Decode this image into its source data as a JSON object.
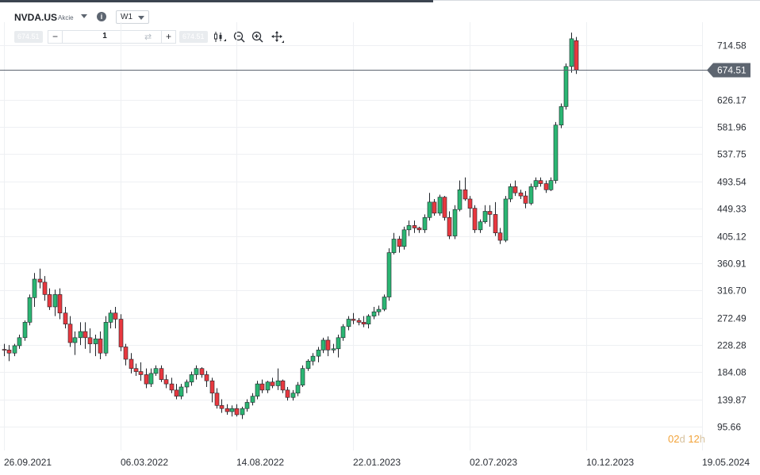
{
  "header": {
    "symbol": "NVDA.US",
    "asset_type": "Akcie",
    "timeframe": "W1"
  },
  "toolbar": {
    "sell_price": "674.51",
    "quantity": "1",
    "minus_label": "−",
    "plus_label": "+",
    "swap_glyph": "⇄",
    "buy_price": "674.51",
    "tools": [
      "candlestick-type-icon",
      "zoom-out-icon",
      "zoom-in-icon",
      "crosshair-move-icon"
    ]
  },
  "countdown": {
    "days": "02",
    "days_unit": "d",
    "hours": "12",
    "hours_unit": "h"
  },
  "colors": {
    "up": "#2bb673",
    "down": "#e8383f",
    "grid": "#eef0f3",
    "current_price_line": "#5d6570",
    "price_tag_bg": "#5d6570",
    "countdown": "#f2a33a"
  },
  "chart_data": {
    "type": "candlestick",
    "symbol": "NVDA.US",
    "timeframe": "W1",
    "current_price": 674.51,
    "grid": true,
    "ylim": [
      95.66,
      740
    ],
    "y_ticks": [
      714.58,
      626.17,
      581.96,
      537.75,
      493.54,
      449.33,
      405.12,
      360.91,
      316.7,
      272.49,
      228.28,
      184.08,
      139.87,
      95.66
    ],
    "y_tick_labels": [
      "714.58",
      "626.17",
      "581.96",
      "537.75",
      "493.54",
      "449.33",
      "405.12",
      "360.91",
      "316.70",
      "272.49",
      "228.28",
      "184.08",
      "139.87",
      "95.66"
    ],
    "x_tick_labels": [
      "26.09.2021",
      "06.03.2022",
      "14.08.2022",
      "22.01.2023",
      "02.07.2023",
      "10.12.2023",
      "19.05.2024"
    ],
    "x_tick_index": [
      0,
      23,
      46,
      69,
      92,
      115,
      138
    ],
    "candles": [
      [
        221,
        230,
        210,
        220
      ],
      [
        220,
        228,
        202,
        215
      ],
      [
        215,
        230,
        210,
        227
      ],
      [
        227,
        245,
        222,
        240
      ],
      [
        240,
        268,
        235,
        265
      ],
      [
        265,
        310,
        260,
        305
      ],
      [
        305,
        345,
        290,
        335
      ],
      [
        335,
        352,
        320,
        330
      ],
      [
        330,
        340,
        300,
        310
      ],
      [
        310,
        320,
        285,
        290
      ],
      [
        290,
        318,
        275,
        310
      ],
      [
        310,
        320,
        270,
        280
      ],
      [
        280,
        290,
        255,
        262
      ],
      [
        262,
        275,
        225,
        232
      ],
      [
        232,
        250,
        212,
        240
      ],
      [
        240,
        265,
        228,
        250
      ],
      [
        250,
        265,
        222,
        240
      ],
      [
        240,
        255,
        215,
        230
      ],
      [
        230,
        245,
        210,
        238
      ],
      [
        238,
        250,
        205,
        215
      ],
      [
        215,
        275,
        210,
        265
      ],
      [
        265,
        285,
        255,
        280
      ],
      [
        280,
        290,
        255,
        270
      ],
      [
        270,
        278,
        218,
        225
      ],
      [
        225,
        230,
        195,
        205
      ],
      [
        205,
        215,
        182,
        190
      ],
      [
        190,
        198,
        178,
        185
      ],
      [
        185,
        200,
        170,
        180
      ],
      [
        180,
        190,
        158,
        165
      ],
      [
        165,
        190,
        160,
        182
      ],
      [
        182,
        195,
        178,
        190
      ],
      [
        190,
        195,
        168,
        172
      ],
      [
        172,
        180,
        158,
        165
      ],
      [
        165,
        175,
        150,
        155
      ],
      [
        155,
        165,
        140,
        145
      ],
      [
        145,
        165,
        140,
        160
      ],
      [
        160,
        172,
        150,
        168
      ],
      [
        168,
        185,
        162,
        180
      ],
      [
        180,
        195,
        172,
        190
      ],
      [
        190,
        192,
        175,
        180
      ],
      [
        180,
        186,
        160,
        170
      ],
      [
        170,
        175,
        135,
        150
      ],
      [
        150,
        158,
        125,
        130
      ],
      [
        130,
        140,
        118,
        125
      ],
      [
        125,
        132,
        115,
        120
      ],
      [
        120,
        130,
        112,
        125
      ],
      [
        125,
        132,
        112,
        115
      ],
      [
        115,
        128,
        108,
        125
      ],
      [
        125,
        140,
        120,
        135
      ],
      [
        135,
        150,
        130,
        145
      ],
      [
        145,
        170,
        140,
        165
      ],
      [
        165,
        172,
        150,
        155
      ],
      [
        155,
        170,
        150,
        168
      ],
      [
        168,
        175,
        158,
        162
      ],
      [
        162,
        190,
        155,
        170
      ],
      [
        170,
        172,
        150,
        155
      ],
      [
        155,
        160,
        138,
        143
      ],
      [
        143,
        155,
        138,
        150
      ],
      [
        150,
        168,
        145,
        163
      ],
      [
        163,
        195,
        160,
        190
      ],
      [
        190,
        205,
        186,
        202
      ],
      [
        202,
        215,
        195,
        210
      ],
      [
        210,
        225,
        200,
        220
      ],
      [
        220,
        240,
        215,
        236
      ],
      [
        236,
        242,
        210,
        220
      ],
      [
        220,
        230,
        215,
        222
      ],
      [
        222,
        245,
        208,
        240
      ],
      [
        240,
        262,
        235,
        258
      ],
      [
        258,
        275,
        252,
        270
      ],
      [
        270,
        280,
        262,
        268
      ],
      [
        268,
        272,
        260,
        265
      ],
      [
        265,
        275,
        257,
        262
      ],
      [
        262,
        278,
        255,
        275
      ],
      [
        275,
        290,
        270,
        282
      ],
      [
        282,
        292,
        276,
        286
      ],
      [
        286,
        310,
        283,
        306
      ],
      [
        306,
        385,
        300,
        378
      ],
      [
        378,
        410,
        375,
        400
      ],
      [
        400,
        405,
        378,
        388
      ],
      [
        388,
        420,
        383,
        415
      ],
      [
        415,
        430,
        405,
        422
      ],
      [
        422,
        430,
        410,
        418
      ],
      [
        418,
        420,
        410,
        415
      ],
      [
        415,
        440,
        410,
        435
      ],
      [
        435,
        475,
        430,
        460
      ],
      [
        460,
        465,
        438,
        442
      ],
      [
        442,
        472,
        438,
        468
      ],
      [
        468,
        470,
        430,
        435
      ],
      [
        435,
        445,
        400,
        405
      ],
      [
        405,
        455,
        400,
        448
      ],
      [
        448,
        495,
        445,
        480
      ],
      [
        480,
        500,
        462,
        465
      ],
      [
        465,
        470,
        435,
        450
      ],
      [
        450,
        455,
        410,
        415
      ],
      [
        415,
        432,
        410,
        428
      ],
      [
        428,
        455,
        425,
        445
      ],
      [
        445,
        455,
        420,
        440
      ],
      [
        440,
        460,
        405,
        410
      ],
      [
        410,
        418,
        392,
        398
      ],
      [
        398,
        470,
        395,
        465
      ],
      [
        465,
        490,
        460,
        485
      ],
      [
        485,
        495,
        470,
        475
      ],
      [
        475,
        480,
        465,
        470
      ],
      [
        470,
        478,
        450,
        458
      ],
      [
        458,
        490,
        455,
        485
      ],
      [
        485,
        500,
        480,
        495
      ],
      [
        495,
        500,
        485,
        490
      ],
      [
        490,
        495,
        475,
        480
      ],
      [
        480,
        500,
        478,
        495
      ],
      [
        495,
        590,
        490,
        585
      ],
      [
        585,
        620,
        580,
        615
      ],
      [
        615,
        685,
        610,
        680
      ],
      [
        680,
        735,
        670,
        725
      ],
      [
        722,
        728,
        668,
        674.51
      ]
    ]
  }
}
